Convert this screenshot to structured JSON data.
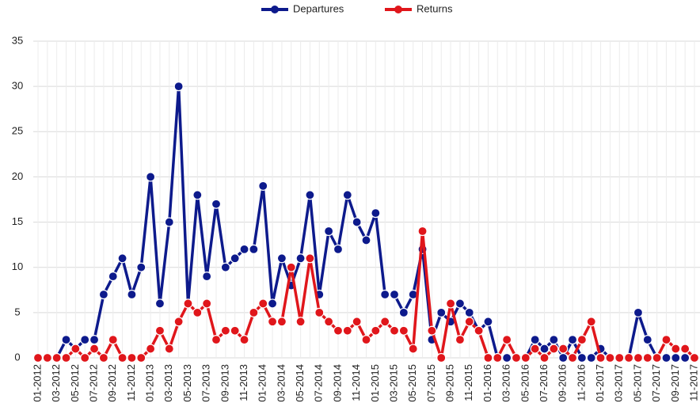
{
  "chart_data": {
    "type": "line",
    "categories": [
      "01-2012",
      null,
      "03-2012",
      null,
      "05-2012",
      null,
      "07-2012",
      null,
      "09-2012",
      null,
      "11-2012",
      null,
      "01-2013",
      null,
      "03-2013",
      null,
      "05-2013",
      null,
      "07-2013",
      null,
      "09-2013",
      null,
      "11-2013",
      null,
      "01-2014",
      null,
      "03-2014",
      null,
      "05-2014",
      null,
      "07-2014",
      null,
      "09-2014",
      null,
      "11-2014",
      null,
      "01-2015",
      null,
      "03-2015",
      null,
      "05-2015",
      null,
      "07-2015",
      null,
      "09-2015",
      null,
      "11-2015",
      null,
      "01-2016",
      null,
      "03-2016",
      null,
      "05-2016",
      null,
      "07-2016",
      null,
      "09-2016",
      null,
      "11-2016",
      null,
      "01-2017",
      null,
      "03-2017",
      null,
      "05-2017",
      null,
      "07-2017",
      null,
      "09-2017",
      null,
      "11-2017"
    ],
    "series": [
      {
        "name": "Departures",
        "color": "#0d1a8c",
        "values": [
          0,
          0,
          0,
          2,
          1,
          2,
          2,
          7,
          9,
          11,
          7,
          10,
          20,
          6,
          15,
          30,
          6,
          18,
          9,
          17,
          10,
          11,
          12,
          12,
          19,
          6,
          11,
          8,
          11,
          18,
          7,
          14,
          12,
          18,
          15,
          13,
          16,
          7,
          7,
          5,
          7,
          12,
          2,
          5,
          4,
          6,
          5,
          3,
          4,
          0,
          0,
          0,
          0,
          2,
          1,
          2,
          0,
          2,
          0,
          0,
          1,
          0,
          0,
          0,
          5,
          2,
          0,
          0,
          0,
          0,
          0
        ]
      },
      {
        "name": "Returns",
        "color": "#e0161b",
        "values": [
          0,
          0,
          0,
          0,
          1,
          0,
          1,
          0,
          2,
          0,
          0,
          0,
          1,
          3,
          1,
          4,
          6,
          5,
          6,
          2,
          3,
          3,
          2,
          5,
          6,
          4,
          4,
          10,
          4,
          11,
          5,
          4,
          3,
          3,
          4,
          2,
          3,
          4,
          3,
          3,
          1,
          14,
          3,
          0,
          6,
          2,
          4,
          3,
          0,
          0,
          2,
          0,
          0,
          1,
          0,
          1,
          1,
          0,
          2,
          4,
          0,
          0,
          0,
          0,
          0,
          0,
          0,
          2,
          1,
          1,
          0
        ]
      }
    ],
    "ylim": [
      0,
      35
    ],
    "yticks": [
      0,
      5,
      10,
      15,
      20,
      25,
      30,
      35
    ],
    "grid": true,
    "legend": "top"
  }
}
